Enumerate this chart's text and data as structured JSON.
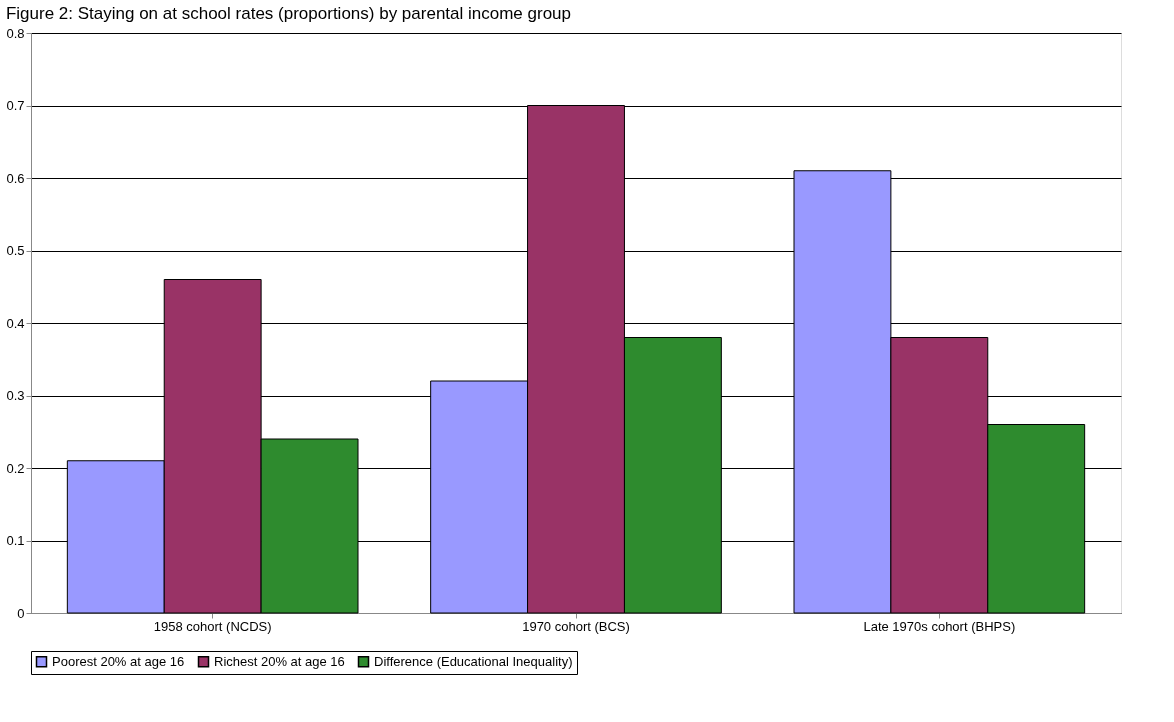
{
  "chart_data": {
    "type": "bar",
    "title": "Figure 2:  Staying on at school rates (proportions) by parental income group",
    "categories": [
      "1958 cohort (NCDS)",
      "1970 cohort (BCS)",
      "Late 1970s cohort (BHPS)"
    ],
    "series": [
      {
        "name": "Poorest 20% at age 16",
        "color": "#9999ff",
        "values": [
          0.21,
          0.32,
          0.61
        ]
      },
      {
        "name": "Richest 20% at age 16",
        "color": "#993366",
        "values": [
          0.46,
          0.7,
          0.38
        ]
      },
      {
        "name": "Difference (Educational Inequality)",
        "color": "#2e8b2e",
        "values": [
          0.24,
          0.38,
          0.26
        ]
      }
    ],
    "ylim": [
      0,
      0.8
    ],
    "yticks": [
      0,
      0.1,
      0.2,
      0.3,
      0.4,
      0.5,
      0.6,
      0.7,
      0.8
    ],
    "grid": "y",
    "legend": "bottom"
  }
}
